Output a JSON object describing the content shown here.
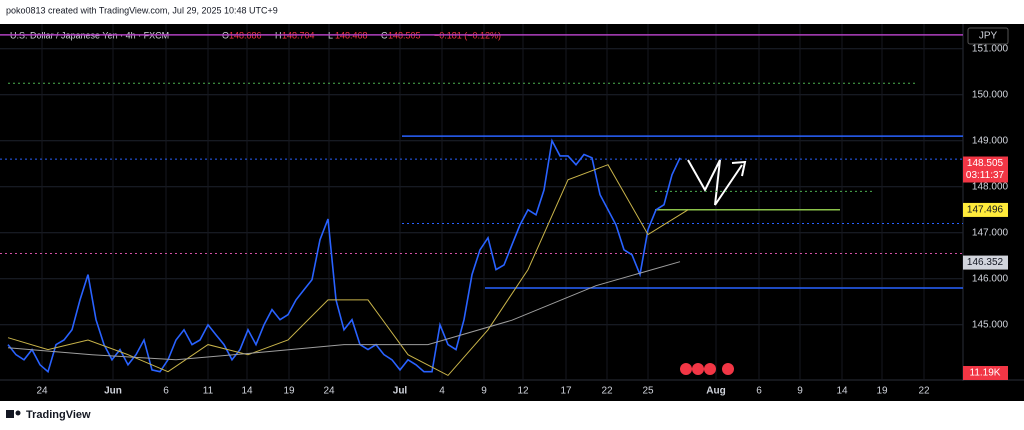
{
  "header": {
    "credit": "poko0813 created with TradingView.com, Jul 29, 2025 10:48 UTC+9",
    "footer": "TradingView"
  },
  "chart_data": {
    "type": "line",
    "legend_text": "U.S. Dollar / Japanese Yen · 4h · FXCM",
    "ohlc": [
      {
        "label": "O",
        "value": "148.686"
      },
      {
        "label": "H",
        "value": "148.704"
      },
      {
        "label": "L",
        "value": "148.468"
      },
      {
        "label": "C",
        "value": "148.505"
      },
      {
        "label": "",
        "value": "−0.181 (−0.12%)"
      }
    ],
    "currency": "JPY",
    "x_labels": [
      "24",
      "Jun",
      "6",
      "11",
      "14",
      "19",
      "24",
      "Jul",
      "4",
      "9",
      "12",
      "17",
      "22",
      "25",
      "Aug",
      "6",
      "9",
      "14",
      "19",
      "22"
    ],
    "ylim": [
      143.8,
      151.45
    ],
    "yticks": [
      {
        "value": 145,
        "label": "145.000"
      },
      {
        "value": 146,
        "label": "146.000"
      },
      {
        "value": 147,
        "label": "147.000"
      },
      {
        "value": 148,
        "label": "148.000"
      },
      {
        "value": 149,
        "label": "149.000"
      },
      {
        "value": 150,
        "label": "150.000"
      },
      {
        "value": 151,
        "label": "151.000"
      }
    ],
    "grid": true,
    "series": [
      {
        "color": "#2962ff",
        "values": [
          144.57,
          144.35,
          144.24,
          144.46,
          144.13,
          143.98,
          144.57,
          144.67,
          144.89,
          145.54,
          146.09,
          145.11,
          144.57,
          144.24,
          144.46,
          144.13,
          144.35,
          144.67,
          144.02,
          143.98,
          144.24,
          144.67,
          144.89,
          144.57,
          144.67,
          145.0,
          144.78,
          144.57,
          144.24,
          144.46,
          144.89,
          144.57,
          145.0,
          145.33,
          145.11,
          145.22,
          145.54,
          145.76,
          145.98,
          146.85,
          147.3,
          145.54,
          144.89,
          145.11,
          144.57,
          144.46,
          144.57,
          144.35,
          144.24,
          144.02,
          144.24,
          144.13,
          143.98,
          143.98,
          145.0,
          144.57,
          144.46,
          145.11,
          146.09,
          146.63,
          146.89,
          146.2,
          146.3,
          146.74,
          147.17,
          147.5,
          147.39,
          147.93,
          149.0,
          148.67,
          148.67,
          148.48,
          148.7,
          148.63,
          147.83,
          147.5,
          147.17,
          146.63,
          146.52,
          146.09,
          147.07,
          147.5,
          147.61,
          148.26,
          148.63
        ]
      },
      {
        "color": "#c9b44a",
        "values": [
          144.72,
          144.46,
          144.67,
          144.35,
          143.98,
          144.57,
          144.35,
          144.67,
          145.54,
          145.54,
          144.35,
          143.9,
          144.89,
          146.2,
          148.15,
          148.48,
          146.96,
          147.5
        ]
      },
      {
        "color": "#9e9e9e",
        "values": [
          144.5,
          144.35,
          144.24,
          144.4,
          144.57,
          144.57,
          145.1,
          145.85,
          146.37
        ]
      }
    ],
    "levels": [
      {
        "value": 151.3,
        "color": "#b040c0",
        "style": "solid"
      },
      {
        "value": 150.25,
        "color": "#4caf50",
        "style": "dotted"
      },
      {
        "value": 149.1,
        "color": "#2962ff",
        "style": "solid"
      },
      {
        "value": 148.6,
        "color": "#2962ff",
        "style": "dotted"
      },
      {
        "value": 147.9,
        "color": "#4caf50",
        "style": "dotted"
      },
      {
        "value": 147.5,
        "color": "#8bc34a",
        "style": "solid"
      },
      {
        "value": 147.2,
        "color": "#2962ff",
        "style": "dotted"
      },
      {
        "value": 146.55,
        "color": "#d04fa0",
        "style": "dotted"
      },
      {
        "value": 145.8,
        "color": "#2962ff",
        "style": "solid"
      }
    ],
    "price_labels": [
      {
        "value": 148.505,
        "color": "#f23645",
        "sub": "03:11:37"
      },
      {
        "value": 147.496,
        "color": "#ffeb3b"
      },
      {
        "value": 146.352,
        "color": "#d1d4dc"
      }
    ],
    "volume_label": "11.19K"
  }
}
